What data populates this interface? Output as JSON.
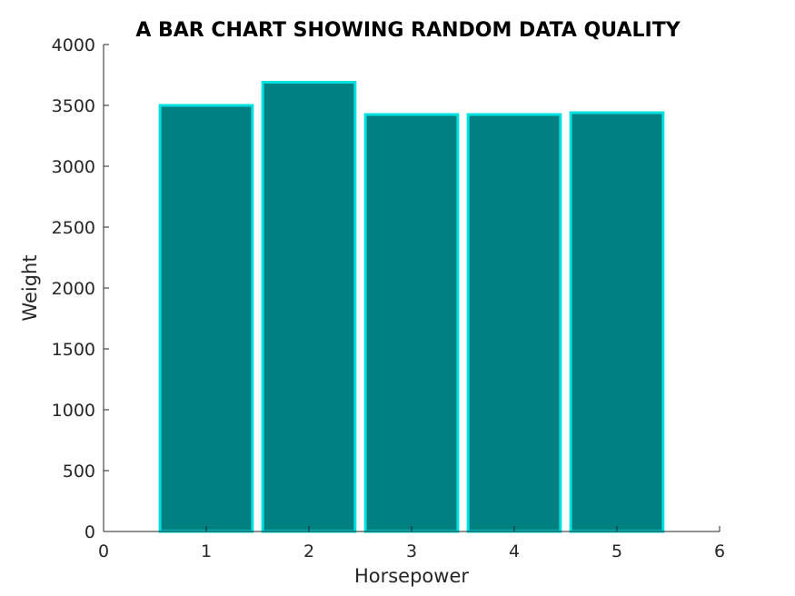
{
  "chart_data": {
    "type": "bar",
    "title": "A BAR CHART SHOWING RANDOM DATA QUALITY",
    "xlabel": "Horsepower",
    "ylabel": "Weight",
    "x": [
      1,
      2,
      3,
      4,
      5
    ],
    "values": [
      3500,
      3690,
      3425,
      3425,
      3440
    ],
    "xlim": [
      0,
      6
    ],
    "ylim": [
      0,
      4000
    ],
    "xticks": [
      0,
      1,
      2,
      3,
      4,
      5,
      6
    ],
    "yticks": [
      0,
      500,
      1000,
      1500,
      2000,
      2500,
      3000,
      3500,
      4000
    ],
    "grid": false,
    "bar_fill_color": "#008080",
    "bar_edge_color": "#00e0e0"
  }
}
